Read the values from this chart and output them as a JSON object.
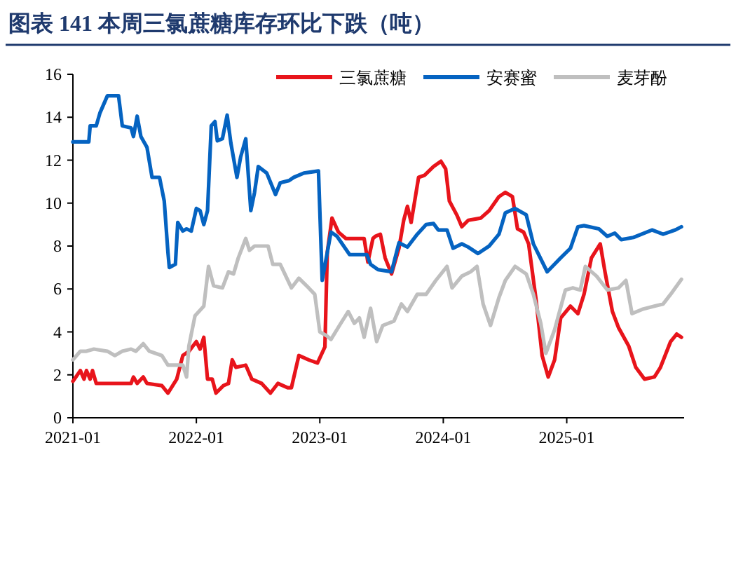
{
  "chart_data": {
    "type": "line",
    "title": "图表 141 本周三氯蔗糖库存环比下跌（吨）",
    "xlim": [
      "2021-01-01",
      "2025-12-14"
    ],
    "xticks": [
      "2021-01",
      "2022-01",
      "2023-01",
      "2024-01",
      "2025-01"
    ],
    "ylim": [
      0,
      16
    ],
    "yticks": [
      0,
      2,
      4,
      6,
      8,
      10,
      12,
      14,
      16
    ],
    "grid": false,
    "legend": "top right",
    "marker": "none",
    "line_style": "solid",
    "series": [
      {
        "name": "三氯蔗糖",
        "color": "#e8141b",
        "x": [
          "2021-01-01",
          "2021-01-23",
          "2021-02-03",
          "2021-02-10",
          "2021-02-21",
          "2021-02-28",
          "2021-03-11",
          "2021-06-22",
          "2021-06-29",
          "2021-07-10",
          "2021-07-28",
          "2021-08-08",
          "2021-09-21",
          "2021-10-09",
          "2021-11-04",
          "2021-11-22",
          "2021-12-10",
          "2022-01-01",
          "2022-01-12",
          "2022-01-23",
          "2022-02-03",
          "2022-02-17",
          "2022-02-28",
          "2022-03-22",
          "2022-04-06",
          "2022-04-17",
          "2022-04-28",
          "2022-05-27",
          "2022-06-14",
          "2022-07-13",
          "2022-08-08",
          "2022-08-30",
          "2022-09-28",
          "2022-10-09",
          "2022-10-31",
          "2022-11-29",
          "2022-12-25",
          "2023-01-16",
          "2023-01-23",
          "2023-02-06",
          "2023-02-25",
          "2023-03-19",
          "2023-05-12",
          "2023-05-23",
          "2023-06-07",
          "2023-06-14",
          "2023-06-29",
          "2023-07-13",
          "2023-08-01",
          "2023-08-23",
          "2023-09-06",
          "2023-09-17",
          "2023-09-28",
          "2023-10-20",
          "2023-11-07",
          "2023-12-03",
          "2023-12-25",
          "2024-01-08",
          "2024-01-19",
          "2024-02-10",
          "2024-02-25",
          "2024-03-15",
          "2024-04-21",
          "2024-05-16",
          "2024-06-14",
          "2024-07-03",
          "2024-07-24",
          "2024-08-08",
          "2024-08-26",
          "2024-09-10",
          "2024-10-02",
          "2024-10-20",
          "2024-11-07",
          "2024-11-26",
          "2024-12-14",
          "2025-01-12",
          "2025-02-03",
          "2025-02-21",
          "2025-03-15",
          "2025-04-10",
          "2025-04-24",
          "2025-05-16",
          "2025-06-03",
          "2025-07-03",
          "2025-07-24",
          "2025-08-19",
          "2025-09-17",
          "2025-10-05",
          "2025-11-04",
          "2025-11-22",
          "2025-12-06"
        ],
        "values": [
          1.7,
          2.2,
          1.8,
          2.2,
          1.8,
          2.2,
          1.6,
          1.6,
          1.9,
          1.6,
          1.9,
          1.6,
          1.5,
          1.15,
          1.8,
          2.9,
          3.1,
          3.55,
          3.2,
          3.75,
          1.8,
          1.8,
          1.15,
          1.5,
          1.6,
          2.7,
          2.35,
          2.45,
          1.8,
          1.6,
          1.15,
          1.6,
          1.4,
          1.4,
          2.9,
          2.7,
          2.55,
          3.3,
          7.7,
          9.3,
          8.65,
          8.35,
          8.35,
          7.25,
          8.35,
          8.45,
          8.55,
          7.45,
          6.7,
          7.9,
          9.2,
          9.85,
          9.1,
          11.2,
          11.3,
          11.7,
          11.95,
          11.6,
          10.1,
          9.45,
          8.9,
          9.2,
          9.3,
          9.65,
          10.3,
          10.5,
          10.3,
          8.8,
          8.65,
          8.1,
          5.5,
          2.9,
          1.9,
          2.7,
          4.65,
          5.2,
          4.85,
          5.75,
          7.45,
          8.1,
          6.8,
          4.95,
          4.2,
          3.35,
          2.35,
          1.8,
          1.9,
          2.35,
          3.55,
          3.9,
          3.75
        ]
      },
      {
        "name": "安赛蜜",
        "color": "#0563c1",
        "x": [
          "2021-01-01",
          "2021-02-17",
          "2021-02-21",
          "2021-03-11",
          "2021-03-22",
          "2021-04-13",
          "2021-05-16",
          "2021-05-27",
          "2021-06-22",
          "2021-06-29",
          "2021-07-10",
          "2021-07-21",
          "2021-08-08",
          "2021-08-23",
          "2021-09-14",
          "2021-09-28",
          "2021-10-09",
          "2021-10-13",
          "2021-10-31",
          "2021-11-07",
          "2021-11-22",
          "2021-12-03",
          "2021-12-17",
          "2022-01-01",
          "2022-01-12",
          "2022-01-23",
          "2022-02-03",
          "2022-02-14",
          "2022-02-25",
          "2022-03-04",
          "2022-03-19",
          "2022-04-02",
          "2022-04-13",
          "2022-05-01",
          "2022-05-12",
          "2022-05-27",
          "2022-06-11",
          "2022-06-22",
          "2022-07-03",
          "2022-07-28",
          "2022-08-23",
          "2022-09-06",
          "2022-10-02",
          "2022-10-16",
          "2022-11-15",
          "2022-12-28",
          "2023-01-08",
          "2023-02-03",
          "2023-02-21",
          "2023-03-30",
          "2023-05-20",
          "2023-05-31",
          "2023-06-22",
          "2023-08-01",
          "2023-08-23",
          "2023-09-17",
          "2023-10-16",
          "2023-11-11",
          "2023-12-03",
          "2023-12-17",
          "2024-01-12",
          "2024-01-30",
          "2024-02-25",
          "2024-03-15",
          "2024-04-13",
          "2024-05-16",
          "2024-06-14",
          "2024-07-03",
          "2024-08-01",
          "2024-09-03",
          "2024-09-24",
          "2024-11-04",
          "2024-12-14",
          "2025-01-12",
          "2025-02-03",
          "2025-02-21",
          "2025-04-06",
          "2025-05-01",
          "2025-05-23",
          "2025-06-11",
          "2025-07-17",
          "2025-09-10",
          "2025-10-13",
          "2025-11-18",
          "2025-12-06"
        ],
        "values": [
          12.85,
          12.85,
          13.6,
          13.6,
          14.2,
          15.0,
          15.0,
          13.6,
          13.5,
          13.1,
          14.05,
          13.1,
          12.6,
          11.2,
          11.2,
          10.1,
          7.7,
          7.0,
          7.15,
          9.1,
          8.7,
          8.8,
          8.7,
          9.75,
          9.65,
          9.0,
          9.65,
          13.6,
          13.8,
          12.9,
          13.0,
          14.1,
          12.8,
          11.2,
          12.15,
          13.0,
          9.65,
          10.5,
          11.7,
          11.4,
          10.4,
          10.95,
          11.05,
          11.2,
          11.4,
          11.5,
          6.4,
          8.65,
          8.45,
          7.6,
          7.6,
          7.15,
          6.9,
          6.8,
          8.15,
          7.95,
          8.55,
          9.0,
          9.05,
          8.75,
          8.75,
          7.9,
          8.1,
          7.95,
          7.65,
          8.0,
          8.55,
          9.55,
          9.75,
          9.45,
          8.1,
          6.8,
          7.45,
          7.9,
          8.9,
          8.95,
          8.8,
          8.45,
          8.6,
          8.3,
          8.4,
          8.75,
          8.55,
          8.75,
          8.9
        ]
      },
      {
        "name": "麦芽酚",
        "color": "#bfbfbf",
        "x": [
          "2021-01-01",
          "2021-01-23",
          "2021-02-10",
          "2021-03-04",
          "2021-04-13",
          "2021-05-05",
          "2021-05-27",
          "2021-06-22",
          "2021-07-06",
          "2021-07-28",
          "2021-08-15",
          "2021-09-21",
          "2021-10-09",
          "2021-11-22",
          "2021-12-03",
          "2021-12-10",
          "2021-12-28",
          "2022-01-23",
          "2022-02-06",
          "2022-02-21",
          "2022-03-19",
          "2022-04-06",
          "2022-04-21",
          "2022-05-05",
          "2022-05-27",
          "2022-06-07",
          "2022-06-22",
          "2022-08-01",
          "2022-08-15",
          "2022-09-06",
          "2022-10-09",
          "2022-10-31",
          "2022-11-29",
          "2022-12-17",
          "2023-01-01",
          "2023-01-23",
          "2023-02-03",
          "2023-03-04",
          "2023-03-26",
          "2023-04-13",
          "2023-04-28",
          "2023-05-12",
          "2023-05-31",
          "2023-06-18",
          "2023-07-06",
          "2023-08-08",
          "2023-08-30",
          "2023-09-17",
          "2023-10-16",
          "2023-11-11",
          "2023-12-10",
          "2024-01-12",
          "2024-01-27",
          "2024-02-25",
          "2024-03-22",
          "2024-04-10",
          "2024-04-28",
          "2024-05-20",
          "2024-06-14",
          "2024-07-03",
          "2024-08-01",
          "2024-09-03",
          "2024-09-24",
          "2024-10-16",
          "2024-10-31",
          "2024-11-26",
          "2024-12-28",
          "2025-01-19",
          "2025-02-10",
          "2025-02-25",
          "2025-03-30",
          "2025-05-01",
          "2025-06-03",
          "2025-06-25",
          "2025-07-13",
          "2025-08-12",
          "2025-09-17",
          "2025-10-13",
          "2025-11-04",
          "2025-12-06"
        ],
        "values": [
          2.7,
          3.1,
          3.1,
          3.2,
          3.1,
          2.9,
          3.1,
          3.2,
          3.1,
          3.45,
          3.1,
          2.9,
          2.45,
          2.45,
          1.9,
          3.35,
          4.75,
          5.2,
          7.05,
          6.15,
          6.05,
          6.8,
          6.7,
          7.45,
          8.35,
          7.8,
          8.0,
          8.0,
          7.15,
          7.15,
          6.05,
          6.5,
          6.05,
          5.75,
          4.0,
          3.8,
          3.65,
          4.4,
          4.95,
          4.4,
          4.65,
          3.75,
          5.1,
          3.55,
          4.3,
          4.5,
          5.3,
          4.95,
          5.75,
          5.75,
          6.4,
          7.05,
          6.05,
          6.6,
          6.8,
          7.05,
          5.3,
          4.3,
          5.6,
          6.4,
          7.05,
          6.7,
          5.75,
          4.4,
          3.0,
          4.1,
          5.95,
          6.05,
          5.95,
          7.05,
          6.6,
          5.95,
          6.05,
          6.4,
          4.85,
          5.05,
          5.2,
          5.3,
          5.75,
          6.45
        ]
      }
    ]
  }
}
